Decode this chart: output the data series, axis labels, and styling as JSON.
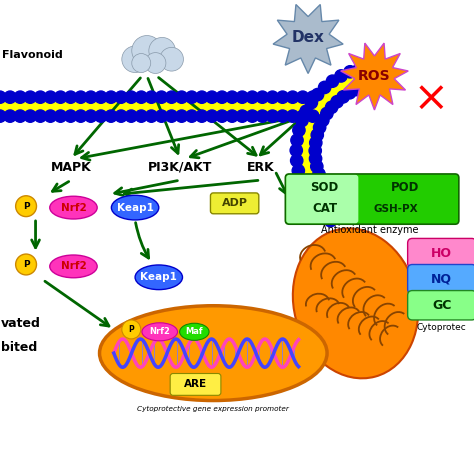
{
  "bg_color": "#ffffff",
  "flavonoid_text": "Flavonoid",
  "dex_text": "Dex",
  "ros_text": "ROS",
  "mapk_text": "MAPK",
  "pi3k_text": "PI3K/AKT",
  "erk_text": "ERK",
  "adp_text": "ADP",
  "nrf2_text": "Nrf2",
  "keap1_text": "Keap1",
  "p_text": "P",
  "maf_text": "Maf",
  "are_text": "ARE",
  "cyto_promoter_text": "Cytoprotective gene expression promoter",
  "sod_text": "SOD",
  "pod_text": "POD",
  "cat_text": "CAT",
  "gsh_text": "GSH-PX",
  "antioxidant_text": "Antioxidant enzyme",
  "ho_text": "HO",
  "nq_text": "NQ",
  "gc_text": "GC",
  "cytoprotec_text": "Cytoprotec",
  "vated_text": "vated",
  "bited_text": "bited",
  "arrow_color": "#006600",
  "mem_blue": "#0000cc",
  "mem_yellow": "#ffff00",
  "nrf2_fill": "#ff33bb",
  "nrf2_stroke": "#cc0099",
  "keap1_fill": "#3366ff",
  "keap1_stroke": "#0000cc",
  "p_fill": "#ffcc00",
  "p_stroke": "#cc8800",
  "maf_fill": "#22dd00",
  "maf_stroke": "#118800",
  "nucleus_fill": "#ff9900",
  "nucleus_stroke": "#cc6600",
  "dna1_color": "#ff44bb",
  "dna2_color": "#4444ff",
  "are_fill": "#ffee44",
  "are_stroke": "#888800",
  "dex_fill": "#aabbcc",
  "dex_stroke": "#6688aa",
  "ros_fill": "#ff8800",
  "ros_stroke": "#cc44cc",
  "enz_fill_light": "#aaffaa",
  "enz_fill_dark": "#22cc00",
  "ho_fill": "#ff88cc",
  "ho_stroke": "#cc0066",
  "nq_fill": "#55aaff",
  "nq_stroke": "#2244cc",
  "gc_fill": "#88ff88",
  "gc_stroke": "#228822",
  "mito_fill": "#ff8800",
  "mito_stroke": "#cc4400",
  "cloud_fill": "#c8d8e8",
  "cloud_stroke": "#8899aa"
}
